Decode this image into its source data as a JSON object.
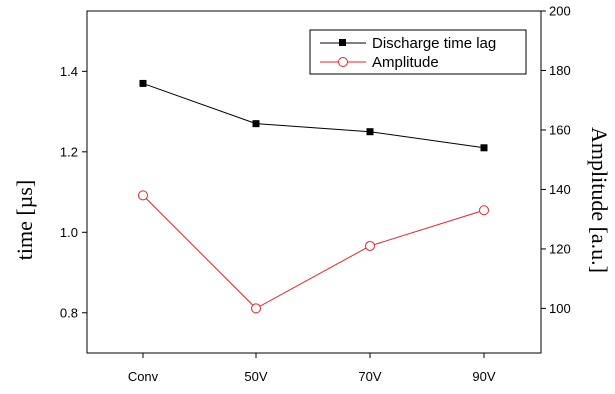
{
  "chart_data": {
    "type": "line",
    "categories": [
      "Conv",
      "50V",
      "70V",
      "90V"
    ],
    "y_left": {
      "label": "time [µs]",
      "range": [
        0.7,
        1.55
      ],
      "ticks": [
        0.8,
        1.0,
        1.2,
        1.4
      ],
      "tick_labels": [
        "0.8",
        "1.0",
        "1.2",
        "1.4"
      ]
    },
    "y_right": {
      "label": "Amplitude [a.u.]",
      "range": [
        85,
        200
      ],
      "ticks": [
        100,
        120,
        140,
        160,
        180,
        200
      ],
      "tick_labels": [
        "100",
        "120",
        "140",
        "160",
        "180",
        "200"
      ]
    },
    "series": [
      {
        "name": "Discharge time lag",
        "axis": "left",
        "color": "#000000",
        "marker": "filled-square",
        "values": [
          1.37,
          1.27,
          1.25,
          1.21
        ]
      },
      {
        "name": "Amplitude",
        "axis": "right",
        "color": "#e8212a",
        "marker": "open-circle",
        "values": [
          138,
          100,
          121,
          133
        ]
      }
    ],
    "legend_position": "top-right",
    "grid": false
  }
}
